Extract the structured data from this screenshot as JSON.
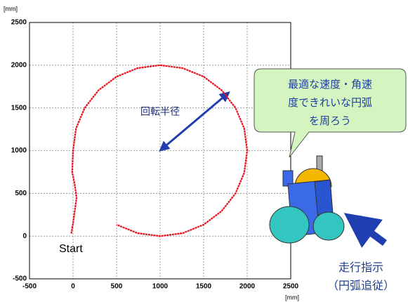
{
  "chart_data": {
    "type": "line",
    "x": [
      -20,
      0,
      20,
      40,
      20,
      -10,
      0,
      34,
      134,
      293,
      500,
      741,
      1000,
      1259,
      1500,
      1707,
      1866,
      1966,
      2000,
      1966,
      1866,
      1707,
      1500,
      1259,
      1000,
      741,
      500
    ],
    "values": [
      30,
      150,
      300,
      450,
      600,
      750,
      1000,
      1259,
      1500,
      1707,
      1866,
      1966,
      2000,
      1966,
      1866,
      1707,
      1500,
      1259,
      1000,
      741,
      500,
      293,
      134,
      34,
      0,
      34,
      134
    ],
    "color": "#e8101a",
    "xlim": [
      -500,
      2500
    ],
    "ylim": [
      -500,
      2500
    ],
    "xticks": [
      -500,
      0,
      500,
      1000,
      1500,
      2000,
      2500
    ],
    "yticks": [
      -500,
      0,
      500,
      1000,
      1500,
      2000,
      2500
    ],
    "grid": true,
    "x_unit": "[mm]",
    "y_unit": "[mm]",
    "annotations": [
      "回転半径",
      "Start"
    ]
  },
  "bubble_text": [
    "最適な速度・角速",
    "度できれいな円弧",
    "を周ろう"
  ],
  "command_text": [
    "走行指示",
    "（円弧追従）"
  ]
}
